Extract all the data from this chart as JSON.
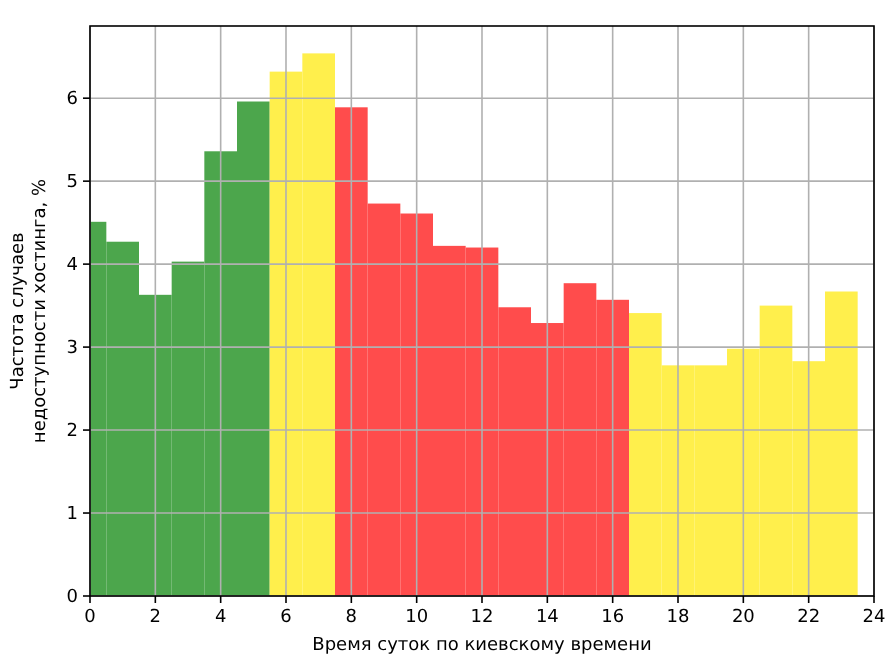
{
  "chart_data": {
    "type": "histogram",
    "xlabel": "Время суток по киевскому времени",
    "ylabel": "Частота случаев\nнедоступности хостинга, %",
    "bins": [
      0,
      0.5,
      1.5,
      2.5,
      3.5,
      4.5,
      5.5,
      6.5,
      7.5,
      8.5,
      9.5,
      10.5,
      11.5,
      12.5,
      13.5,
      14.5,
      15.5,
      16.5,
      17.5,
      18.5,
      19.5,
      20.5,
      21.5,
      22.5,
      23.5
    ],
    "values": [
      4.51,
      4.27,
      3.63,
      4.03,
      5.36,
      5.96,
      6.32,
      6.54,
      5.89,
      4.73,
      4.61,
      4.22,
      4.2,
      3.48,
      3.29,
      3.77,
      3.57,
      3.41,
      2.78,
      2.78,
      2.98,
      3.5,
      2.83,
      3.67
    ],
    "colors": [
      "#4ca64c",
      "#4ca64c",
      "#4ca64c",
      "#4ca64c",
      "#4ca64c",
      "#4ca64c",
      "#ffef4c",
      "#ffef4c",
      "#ff4c4c",
      "#ff4c4c",
      "#ff4c4c",
      "#ff4c4c",
      "#ff4c4c",
      "#ff4c4c",
      "#ff4c4c",
      "#ff4c4c",
      "#ff4c4c",
      "#ffef4c",
      "#ffef4c",
      "#ffef4c",
      "#ffef4c",
      "#ffef4c",
      "#ffef4c",
      "#ffef4c"
    ],
    "xlim": [
      0,
      24
    ],
    "xticks": [
      0,
      2,
      4,
      6,
      8,
      10,
      12,
      14,
      16,
      18,
      20,
      22,
      24
    ],
    "ylim": [
      0,
      6.87
    ],
    "yticks": [
      0,
      1,
      2,
      3,
      4,
      5,
      6
    ],
    "grid": true
  }
}
